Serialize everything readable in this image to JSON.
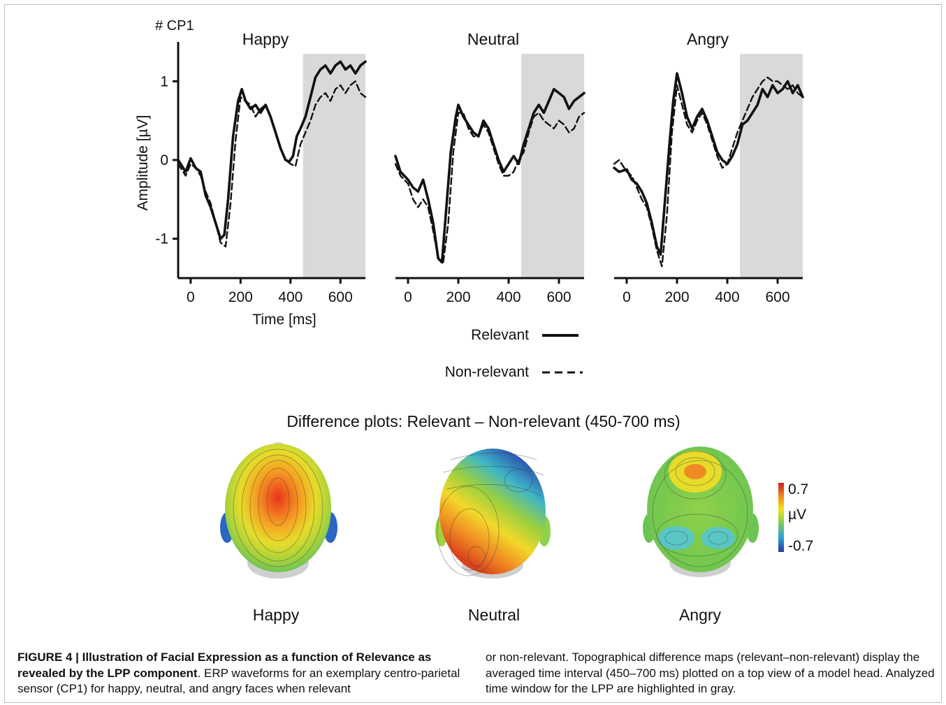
{
  "figure": {
    "caption_label": "FIGURE 4 | ",
    "caption_bold": "Illustration of Facial Expression as a function of Relevance as revealed by the LPP component",
    "caption_left_rest": ". ERP waveforms for an exemplary centro-parietal sensor (CP1) for happy, neutral, and angry faces when relevant",
    "caption_right": "or non-relevant. Topographical difference maps (relevant–non-relevant) display the averaged time interval (450–700 ms) plotted on a top view of a model head. Analyzed time window for the LPP are highlighted in gray."
  },
  "chart_data": [
    {
      "type": "line",
      "title": "Happy",
      "sensor_label": "# CP1",
      "xlabel": "Time [ms]",
      "ylabel": "Amplitude [µV]",
      "xlim": [
        -50,
        700
      ],
      "ylim": [
        -1.5,
        1.5
      ],
      "xticks": [
        "0",
        "200",
        "400",
        "600"
      ],
      "xtick_values": [
        0,
        200,
        400,
        600
      ],
      "yticks": [
        "1",
        "0",
        "-1"
      ],
      "ytick_values": [
        1,
        0,
        -1
      ],
      "highlight_window": [
        450,
        700
      ],
      "highlight_color": "#d9d9d9",
      "series": [
        {
          "name": "Relevant",
          "style": "solid",
          "x": [
            -50,
            -20,
            0,
            20,
            40,
            60,
            80,
            100,
            120,
            135,
            150,
            170,
            190,
            205,
            220,
            240,
            260,
            280,
            300,
            320,
            340,
            360,
            380,
            395,
            410,
            425,
            440,
            460,
            480,
            500,
            520,
            540,
            560,
            580,
            600,
            620,
            640,
            660,
            680,
            700
          ],
          "y": [
            0.0,
            -0.15,
            0.02,
            -0.1,
            -0.15,
            -0.45,
            -0.6,
            -0.8,
            -1.0,
            -0.95,
            -0.5,
            0.3,
            0.75,
            0.9,
            0.75,
            0.65,
            0.7,
            0.6,
            0.7,
            0.55,
            0.35,
            0.15,
            0.0,
            -0.02,
            0.05,
            0.3,
            0.4,
            0.55,
            0.8,
            1.05,
            1.15,
            1.2,
            1.1,
            1.2,
            1.25,
            1.15,
            1.2,
            1.1,
            1.2,
            1.25
          ]
        },
        {
          "name": "Non-relevant",
          "style": "dashed",
          "x": [
            -50,
            -20,
            0,
            20,
            40,
            60,
            80,
            100,
            120,
            140,
            160,
            180,
            200,
            220,
            240,
            260,
            280,
            300,
            320,
            340,
            360,
            380,
            400,
            420,
            440,
            460,
            480,
            500,
            520,
            540,
            560,
            580,
            600,
            620,
            640,
            660,
            680,
            700
          ],
          "y": [
            -0.05,
            -0.2,
            -0.05,
            -0.1,
            -0.2,
            -0.4,
            -0.55,
            -0.8,
            -1.05,
            -1.1,
            -0.55,
            0.25,
            0.8,
            0.75,
            0.7,
            0.55,
            0.65,
            0.7,
            0.55,
            0.35,
            0.15,
            0.0,
            -0.05,
            -0.08,
            0.2,
            0.35,
            0.5,
            0.7,
            0.8,
            0.85,
            0.75,
            0.9,
            0.95,
            0.85,
            0.95,
            1.0,
            0.85,
            0.8
          ]
        }
      ]
    },
    {
      "type": "line",
      "title": "Neutral",
      "xlim": [
        -50,
        700
      ],
      "ylim": [
        -1.5,
        1.5
      ],
      "xticks": [
        "0",
        "200",
        "400",
        "600"
      ],
      "xtick_values": [
        0,
        200,
        400,
        600
      ],
      "highlight_window": [
        450,
        700
      ],
      "highlight_color": "#d9d9d9",
      "series": [
        {
          "name": "Relevant",
          "style": "solid",
          "x": [
            -50,
            -30,
            0,
            20,
            40,
            60,
            80,
            100,
            120,
            135,
            150,
            170,
            190,
            200,
            220,
            240,
            260,
            280,
            300,
            320,
            340,
            360,
            380,
            400,
            420,
            440,
            460,
            480,
            500,
            520,
            540,
            560,
            580,
            600,
            620,
            640,
            660,
            680,
            700
          ],
          "y": [
            0.05,
            -0.15,
            -0.25,
            -0.35,
            -0.4,
            -0.25,
            -0.5,
            -0.8,
            -1.25,
            -1.3,
            -0.7,
            0.1,
            0.55,
            0.7,
            0.55,
            0.45,
            0.35,
            0.3,
            0.5,
            0.4,
            0.2,
            0.0,
            -0.15,
            -0.05,
            0.05,
            -0.05,
            0.2,
            0.4,
            0.6,
            0.7,
            0.6,
            0.75,
            0.9,
            0.85,
            0.8,
            0.65,
            0.75,
            0.8,
            0.85
          ]
        },
        {
          "name": "Non-relevant",
          "style": "dashed",
          "x": [
            -50,
            -30,
            0,
            20,
            40,
            60,
            80,
            100,
            120,
            140,
            160,
            180,
            200,
            220,
            240,
            260,
            280,
            300,
            320,
            340,
            360,
            380,
            400,
            420,
            440,
            460,
            480,
            500,
            520,
            540,
            560,
            580,
            600,
            620,
            640,
            660,
            680,
            700
          ],
          "y": [
            -0.05,
            -0.2,
            -0.3,
            -0.5,
            -0.6,
            -0.5,
            -0.6,
            -0.9,
            -1.25,
            -1.3,
            -0.8,
            0.1,
            0.6,
            0.6,
            0.4,
            0.3,
            0.3,
            0.45,
            0.35,
            0.15,
            -0.05,
            -0.2,
            -0.2,
            -0.15,
            0.0,
            0.1,
            0.35,
            0.55,
            0.6,
            0.5,
            0.45,
            0.4,
            0.5,
            0.45,
            0.35,
            0.4,
            0.55,
            0.6
          ]
        }
      ]
    },
    {
      "type": "line",
      "title": "Angry",
      "xlim": [
        -50,
        700
      ],
      "ylim": [
        -1.5,
        1.5
      ],
      "xticks": [
        "0",
        "200",
        "400",
        "600"
      ],
      "xtick_values": [
        0,
        200,
        400,
        600
      ],
      "highlight_window": [
        450,
        700
      ],
      "highlight_color": "#d9d9d9",
      "series": [
        {
          "name": "Relevant",
          "style": "solid",
          "x": [
            -50,
            -30,
            0,
            20,
            40,
            60,
            80,
            100,
            120,
            135,
            150,
            170,
            185,
            200,
            220,
            240,
            260,
            280,
            300,
            320,
            340,
            360,
            380,
            400,
            420,
            440,
            460,
            480,
            500,
            520,
            540,
            560,
            580,
            600,
            620,
            640,
            660,
            680,
            700
          ],
          "y": [
            -0.1,
            -0.15,
            -0.12,
            -0.25,
            -0.3,
            -0.4,
            -0.55,
            -0.8,
            -1.1,
            -1.2,
            -0.6,
            0.2,
            0.75,
            1.1,
            0.85,
            0.55,
            0.4,
            0.55,
            0.65,
            0.5,
            0.3,
            0.1,
            0.0,
            -0.05,
            0.05,
            0.2,
            0.45,
            0.5,
            0.6,
            0.7,
            0.9,
            0.8,
            0.95,
            0.85,
            0.9,
            1.0,
            0.85,
            0.95,
            0.8
          ]
        },
        {
          "name": "Non-relevant",
          "style": "dashed",
          "x": [
            -50,
            -30,
            0,
            20,
            40,
            60,
            80,
            100,
            120,
            140,
            160,
            180,
            200,
            220,
            240,
            260,
            280,
            300,
            320,
            340,
            360,
            380,
            400,
            420,
            440,
            460,
            480,
            500,
            520,
            540,
            560,
            580,
            600,
            620,
            640,
            660,
            680,
            700
          ],
          "y": [
            -0.05,
            0.0,
            -0.15,
            -0.2,
            -0.35,
            -0.5,
            -0.6,
            -0.85,
            -1.15,
            -1.35,
            -0.7,
            0.35,
            0.95,
            0.7,
            0.45,
            0.35,
            0.5,
            0.6,
            0.45,
            0.25,
            0.05,
            -0.1,
            -0.05,
            0.15,
            0.35,
            0.5,
            0.65,
            0.8,
            0.9,
            1.0,
            1.05,
            1.0,
            1.0,
            0.95,
            0.9,
            0.95,
            0.85,
            0.8
          ]
        }
      ]
    }
  ],
  "legend": {
    "relevant_label": "Relevant",
    "nonrelevant_label": "Non-relevant"
  },
  "topomaps": {
    "title": "Difference plots: Relevant – Non-relevant (450-700 ms)",
    "labels": [
      "Happy",
      "Neutral",
      "Angry"
    ],
    "colorbar": {
      "max_label": "0.7",
      "unit_label": "µV",
      "min_label": "-0.7",
      "colors": [
        "#2a3a9a",
        "#2aa0d8",
        "#8fd14a",
        "#f2e21e",
        "#f08a1e",
        "#cc2020"
      ]
    }
  }
}
